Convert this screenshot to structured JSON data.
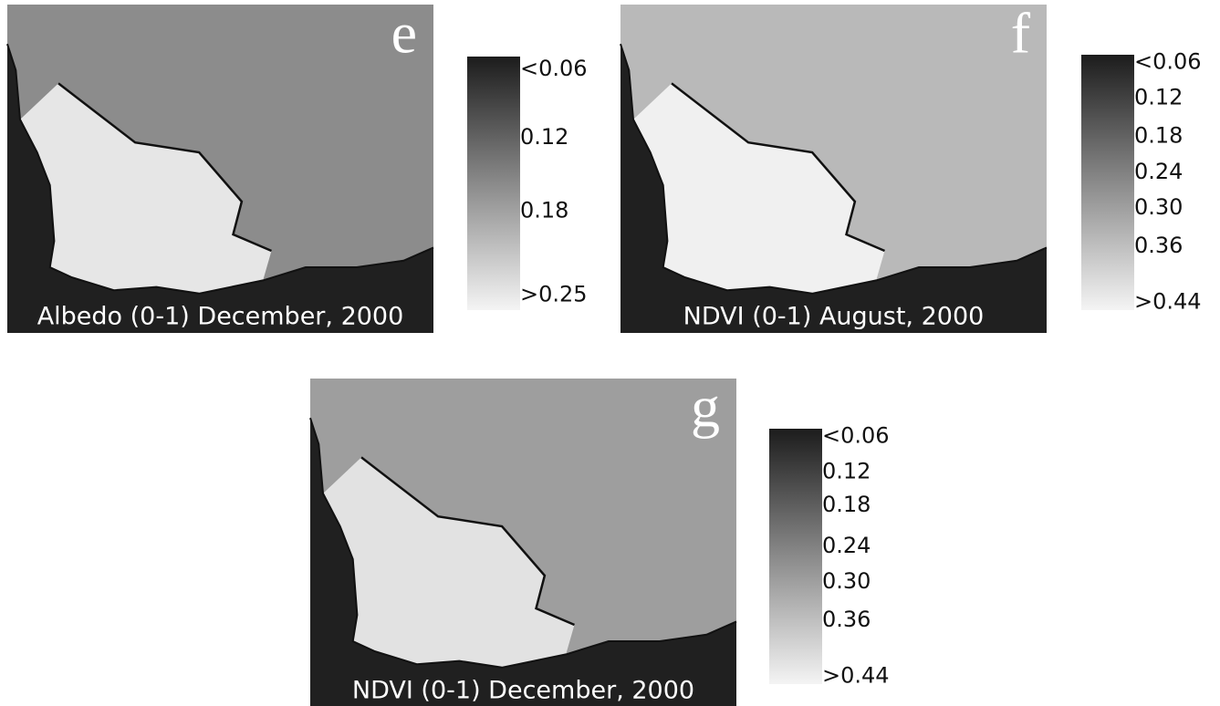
{
  "panels": [
    {
      "letter": "e",
      "caption": "Albedo (0-1) December, 2000",
      "legend": [
        "<0.06",
        "0.12",
        "0.18",
        ">0.25"
      ]
    },
    {
      "letter": "f",
      "caption": "NDVI (0-1) August, 2000",
      "legend": [
        "<0.06",
        "0.12",
        "0.18",
        "0.24",
        "0.30",
        "0.36",
        ">0.44"
      ]
    },
    {
      "letter": "g",
      "caption": "NDVI (0-1) December, 2000",
      "legend": [
        "<0.06",
        "0.12",
        "0.18",
        "0.24",
        "0.30",
        "0.36",
        ">0.44"
      ]
    }
  ]
}
